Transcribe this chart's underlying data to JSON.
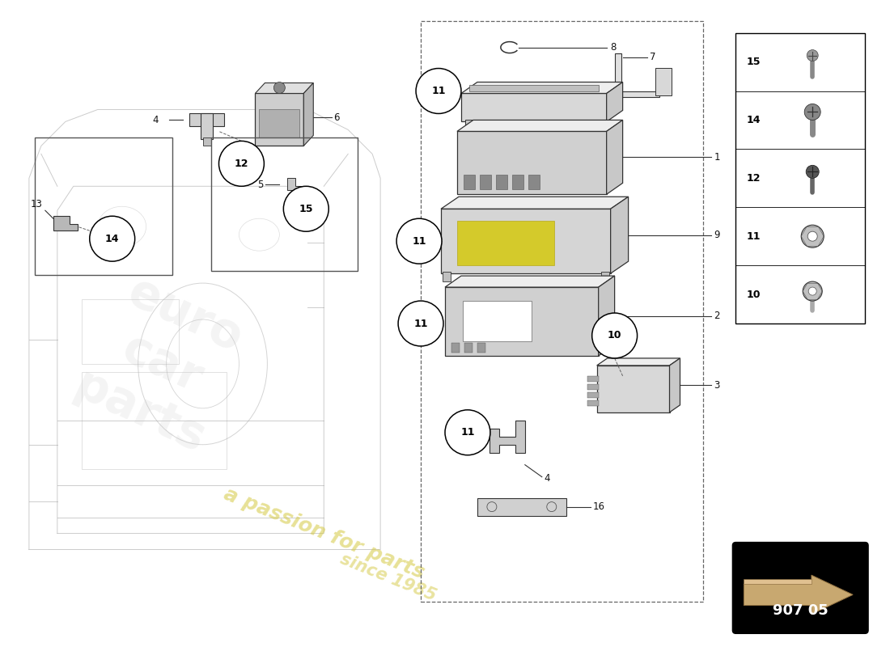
{
  "bg_color": "#ffffff",
  "part_number_box": "907 05",
  "parts_legend": [
    {
      "num": "15"
    },
    {
      "num": "14"
    },
    {
      "num": "12"
    },
    {
      "num": "11"
    },
    {
      "num": "10"
    }
  ],
  "watermark1": "a passion for parts",
  "watermark2": "since 1985",
  "label_color": "#111111",
  "line_color": "#222222",
  "part_fill": "#e8e8e8",
  "part_edge": "#333333",
  "chassis_color": "#cccccc",
  "chassis_alpha": 0.35,
  "callout_r": 0.03
}
